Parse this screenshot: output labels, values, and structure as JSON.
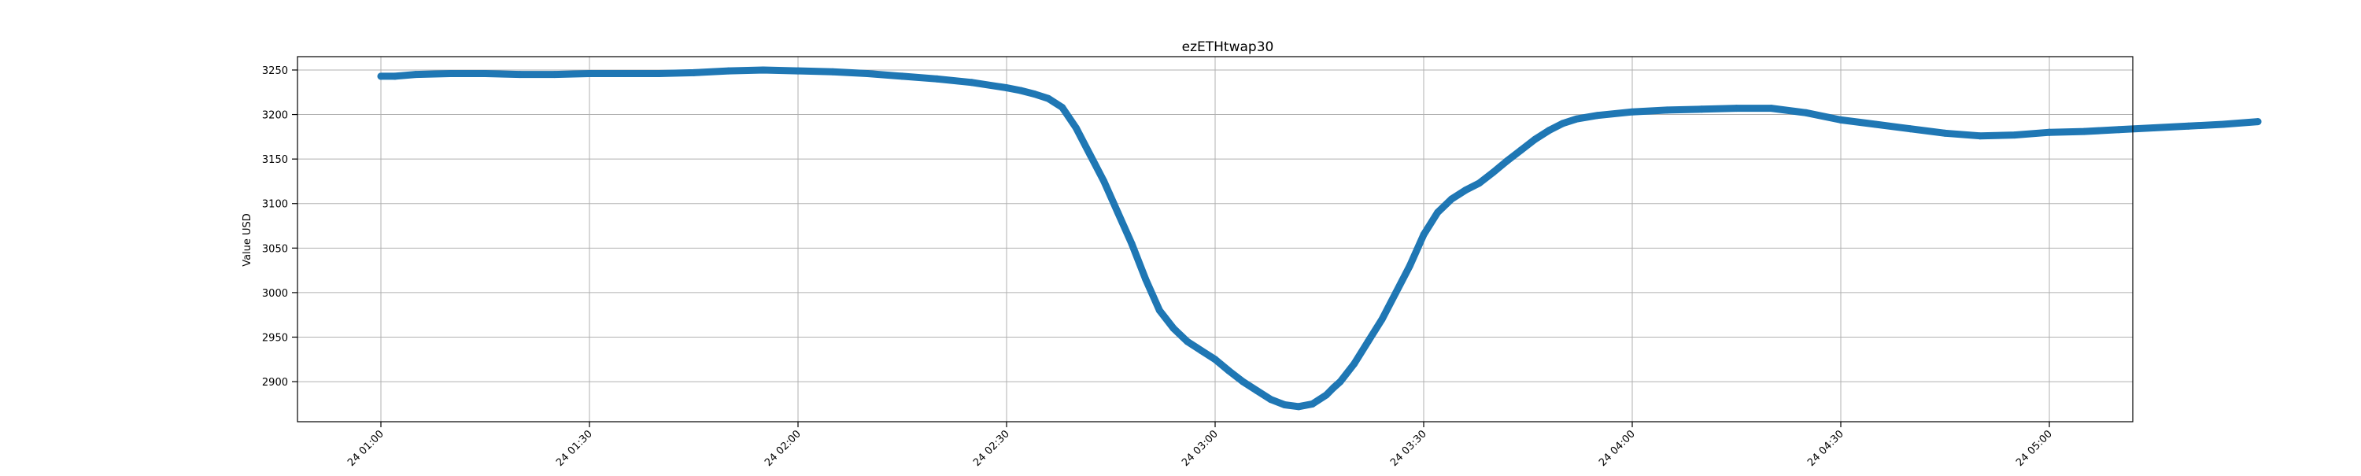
{
  "chart_data": {
    "type": "line",
    "title": "ezETHtwap30",
    "xlabel": "",
    "ylabel": "Value USD",
    "x_tick_labels": [
      "24 01:00",
      "24 01:30",
      "24 02:00",
      "24 02:30",
      "24 03:00",
      "24 03:30",
      "24 04:00",
      "24 04:30",
      "24 05:00"
    ],
    "y_ticks": [
      2900,
      2950,
      3000,
      3050,
      3100,
      3150,
      3200,
      3250
    ],
    "ylim": [
      2855,
      3265
    ],
    "xlim_minutes_from_0100": [
      -12,
      252
    ],
    "grid": true,
    "legend": "none",
    "line_color": "#1f77b4",
    "series": [
      {
        "x_minutes_from_0100": [
          0,
          2,
          5,
          10,
          15,
          20,
          25,
          30,
          35,
          40,
          45,
          50,
          55,
          60,
          65,
          70,
          75,
          80,
          85,
          90,
          92,
          94,
          96,
          98,
          100,
          102,
          104,
          106,
          108,
          110,
          112,
          114,
          116,
          118,
          120,
          122,
          124,
          126,
          128,
          130,
          132,
          134,
          136,
          137,
          138,
          140,
          142,
          144,
          146,
          148,
          150,
          152,
          154,
          156,
          158,
          160,
          162,
          164,
          166,
          168,
          170,
          172,
          175,
          180,
          185,
          190,
          195,
          200,
          205,
          210,
          215,
          220,
          225,
          230,
          235,
          240
        ],
        "values": [
          3243,
          3243,
          3245,
          3246,
          3246,
          3245,
          3245,
          3246,
          3246,
          3246,
          3247,
          3249,
          3250,
          3249,
          3248,
          3246,
          3243,
          3240,
          3236,
          3230,
          3227,
          3223,
          3218,
          3208,
          3185,
          3155,
          3125,
          3090,
          3055,
          3015,
          2980,
          2960,
          2945,
          2935,
          2925,
          2912,
          2900,
          2890,
          2880,
          2874,
          2872,
          2875,
          2885,
          2893,
          2900,
          2920,
          2945,
          2970,
          3000,
          3030,
          3065,
          3090,
          3105,
          3115,
          3123,
          3135,
          3148,
          3160,
          3172,
          3182,
          3190,
          3195,
          3199,
          3203,
          3205,
          3206,
          3207,
          3207,
          3202,
          3194,
          3189,
          3184,
          3179,
          3176,
          3177,
          3180
        ]
      },
      {
        "x_minutes_from_0100": [
          240,
          245,
          250,
          255,
          260,
          265,
          270
        ],
        "values": [
          3180,
          3181,
          3183,
          3185,
          3187,
          3189,
          3192
        ]
      }
    ]
  }
}
